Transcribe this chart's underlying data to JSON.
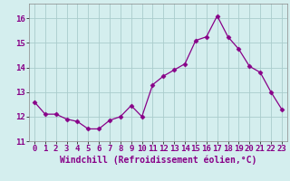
{
  "x": [
    0,
    1,
    2,
    3,
    4,
    5,
    6,
    7,
    8,
    9,
    10,
    11,
    12,
    13,
    14,
    15,
    16,
    17,
    18,
    19,
    20,
    21,
    22,
    23
  ],
  "y": [
    12.6,
    12.1,
    12.1,
    11.9,
    11.8,
    11.5,
    11.5,
    11.85,
    12.0,
    12.45,
    12.0,
    13.3,
    13.65,
    13.9,
    14.15,
    15.1,
    15.25,
    16.1,
    15.25,
    14.75,
    14.05,
    13.8,
    13.0,
    12.3
  ],
  "line_color": "#880088",
  "marker": "D",
  "marker_size": 2.5,
  "bg_color": "#d4eeee",
  "grid_color": "#aacccc",
  "xlabel": "Windchill (Refroidissement éolien,°C)",
  "xlabel_fontsize": 7,
  "tick_fontsize": 6.5,
  "ylim": [
    11.0,
    16.6
  ],
  "yticks": [
    11,
    12,
    13,
    14,
    15,
    16
  ],
  "xticks": [
    0,
    1,
    2,
    3,
    4,
    5,
    6,
    7,
    8,
    9,
    10,
    11,
    12,
    13,
    14,
    15,
    16,
    17,
    18,
    19,
    20,
    21,
    22,
    23
  ]
}
